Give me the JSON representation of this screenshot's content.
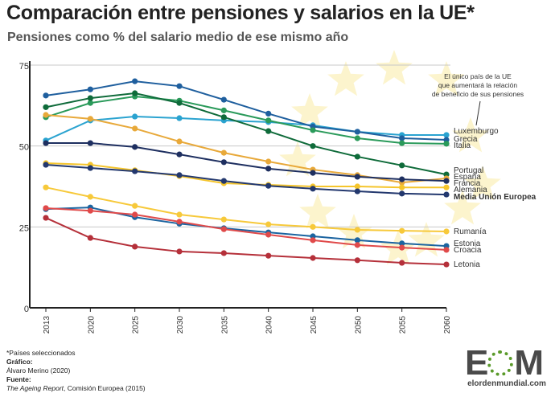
{
  "header": {
    "title": "Comparación entre pensiones y salarios en la UE*",
    "subtitle": "Pensiones como % del salario medio de ese mismo año"
  },
  "chart_data": {
    "type": "line",
    "title": "Comparación entre pensiones y salarios en la UE*",
    "subtitle": "Pensiones como % del salario medio de ese mismo año",
    "xlabel": "",
    "ylabel": "",
    "categories": [
      "2013",
      "2020",
      "2025",
      "2030",
      "2035",
      "2040",
      "2045",
      "2050",
      "2055",
      "2060"
    ],
    "ylim": [
      0,
      75
    ],
    "yticks": [
      0,
      25,
      50,
      75
    ],
    "grid": "horizontal",
    "legend": "right-end labels",
    "annotation": "El único país de la UE que aumentará la relación de beneficio de sus pensiones",
    "series": [
      {
        "name": "Luxemburgo",
        "color": "#2aa3d0",
        "values": [
          51.7,
          57.9,
          59.1,
          58.6,
          57.9,
          57.4,
          56.4,
          54.4,
          53.4,
          53.4
        ]
      },
      {
        "name": "Grecia",
        "color": "#1f5f9e",
        "values": [
          65.6,
          67.5,
          70.0,
          68.5,
          64.3,
          60.0,
          56.0,
          54.4,
          52.4,
          51.9
        ]
      },
      {
        "name": "Italia",
        "color": "#2a9a5a",
        "values": [
          58.9,
          63.3,
          65.3,
          64.0,
          61.0,
          57.9,
          54.9,
          52.4,
          50.9,
          50.7
        ]
      },
      {
        "name": "Portugal",
        "color": "#0f6b3a",
        "values": [
          62.0,
          64.8,
          66.3,
          63.3,
          58.9,
          54.6,
          50.0,
          46.7,
          44.0,
          41.2
        ]
      },
      {
        "name": "España",
        "color": "#e8a93a",
        "values": [
          59.6,
          58.4,
          55.4,
          51.4,
          47.9,
          45.2,
          42.7,
          41.0,
          38.7,
          40.0
        ]
      },
      {
        "name": "Francia",
        "color": "#1e2f60",
        "values": [
          50.9,
          50.9,
          49.7,
          47.4,
          45.0,
          43.0,
          41.7,
          40.5,
          39.7,
          39.2
        ]
      },
      {
        "name": "Alemania",
        "color": "#f5c52c",
        "values": [
          44.7,
          44.2,
          42.5,
          40.7,
          38.5,
          38.0,
          37.5,
          37.5,
          37.2,
          37.2
        ]
      },
      {
        "name": "Media Unión Europea",
        "color": "#23386e",
        "values": [
          44.2,
          43.2,
          42.2,
          41.0,
          39.2,
          37.7,
          36.8,
          36.0,
          35.3,
          35.0
        ]
      },
      {
        "name": "Rumanía",
        "color": "#f7c93a",
        "values": [
          37.2,
          34.3,
          31.5,
          28.8,
          27.3,
          25.8,
          25.0,
          24.1,
          23.8,
          23.6
        ]
      },
      {
        "name": "Estonia",
        "color": "#1b64a0",
        "values": [
          30.5,
          31.0,
          28.0,
          26.0,
          24.6,
          23.3,
          22.1,
          20.9,
          19.9,
          19.1
        ]
      },
      {
        "name": "Croacia",
        "color": "#e04a4a",
        "values": [
          30.8,
          30.0,
          28.8,
          26.6,
          24.3,
          22.6,
          20.9,
          19.4,
          18.6,
          17.9
        ]
      },
      {
        "name": "Letonia",
        "color": "#b5303a",
        "values": [
          27.8,
          21.6,
          18.9,
          17.4,
          16.9,
          16.1,
          15.4,
          14.7,
          13.9,
          13.4
        ]
      }
    ]
  },
  "footer": {
    "note": "*Países seleccionados",
    "graphic_label": "Gráfico:",
    "graphic_author": "Álvaro Merino (2020)",
    "source_label": "Fuente:",
    "source_title": "The Ageing Report",
    "source_rest": ", Comisión Europea (2015)"
  },
  "logo": {
    "letters": "EOM",
    "url": "elordenmundial.com",
    "color": "#5a9a2a"
  }
}
